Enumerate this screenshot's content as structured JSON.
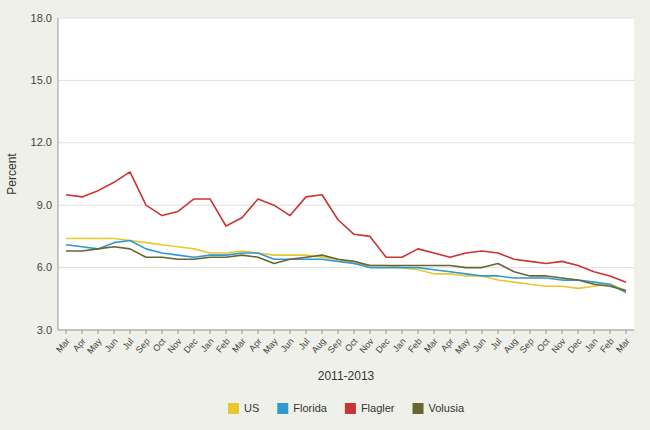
{
  "chart_data": {
    "type": "line",
    "xlabel": "2011-2013",
    "ylabel": "Percent",
    "categories": [
      "Mar",
      "Apr",
      "May",
      "Jun",
      "Jul",
      "Sep",
      "Oct",
      "Nov",
      "Dec",
      "Jan",
      "Feb",
      "Mar",
      "Apr",
      "May",
      "Jun",
      "Jul",
      "Aug",
      "Sep",
      "Oct",
      "Nov",
      "Dec",
      "Jan",
      "Feb",
      "Mar",
      "Apr",
      "May",
      "Jun",
      "Jul",
      "Aug",
      "Sep",
      "Oct",
      "Nov",
      "Dec",
      "Jan",
      "Feb",
      "Mar"
    ],
    "series": [
      {
        "name": "US",
        "color": "#e8c830",
        "values": [
          7.4,
          7.4,
          7.4,
          7.4,
          7.3,
          7.2,
          7.1,
          7.0,
          6.9,
          6.7,
          6.7,
          6.8,
          6.7,
          6.6,
          6.6,
          6.6,
          6.5,
          6.4,
          6.2,
          6.1,
          6.1,
          6.0,
          5.9,
          5.7,
          5.7,
          5.6,
          5.6,
          5.4,
          5.3,
          5.2,
          5.1,
          5.1,
          5.0,
          5.1,
          5.2,
          4.9
        ]
      },
      {
        "name": "Florida",
        "color": "#3399cc",
        "values": [
          7.1,
          7.0,
          6.9,
          7.2,
          7.3,
          6.9,
          6.7,
          6.6,
          6.5,
          6.6,
          6.6,
          6.7,
          6.7,
          6.4,
          6.4,
          6.4,
          6.4,
          6.3,
          6.2,
          6.0,
          6.0,
          6.0,
          6.0,
          5.9,
          5.8,
          5.7,
          5.6,
          5.6,
          5.5,
          5.5,
          5.5,
          5.4,
          5.4,
          5.3,
          5.2,
          4.8
        ]
      },
      {
        "name": "Flagler",
        "color": "#cc3333",
        "values": [
          9.5,
          9.4,
          9.7,
          10.1,
          10.6,
          9.0,
          8.5,
          8.7,
          9.3,
          9.3,
          8.0,
          8.4,
          9.3,
          9.0,
          8.5,
          9.4,
          9.5,
          8.3,
          7.6,
          7.5,
          6.5,
          6.5,
          6.9,
          6.7,
          6.5,
          6.7,
          6.8,
          6.7,
          6.4,
          6.3,
          6.2,
          6.3,
          6.1,
          5.8,
          5.6,
          5.3
        ]
      },
      {
        "name": "Volusia",
        "color": "#666633",
        "values": [
          6.8,
          6.8,
          6.9,
          7.0,
          6.9,
          6.5,
          6.5,
          6.4,
          6.4,
          6.5,
          6.5,
          6.6,
          6.5,
          6.2,
          6.4,
          6.5,
          6.6,
          6.4,
          6.3,
          6.1,
          6.1,
          6.1,
          6.1,
          6.1,
          6.1,
          6.0,
          6.0,
          6.2,
          5.8,
          5.6,
          5.6,
          5.5,
          5.4,
          5.2,
          5.1,
          4.9
        ]
      }
    ],
    "ylim": [
      3.0,
      18.0
    ],
    "yticks": [
      {
        "value": 3.0,
        "label": "3.0"
      },
      {
        "value": 6.0,
        "label": "6.0"
      },
      {
        "value": 9.0,
        "label": "9.0"
      },
      {
        "value": 12.0,
        "label": "12.0"
      },
      {
        "value": 15.0,
        "label": "15.0"
      },
      {
        "value": 18.0,
        "label": "18.0"
      }
    ],
    "grid": true,
    "legend": "bottom"
  }
}
